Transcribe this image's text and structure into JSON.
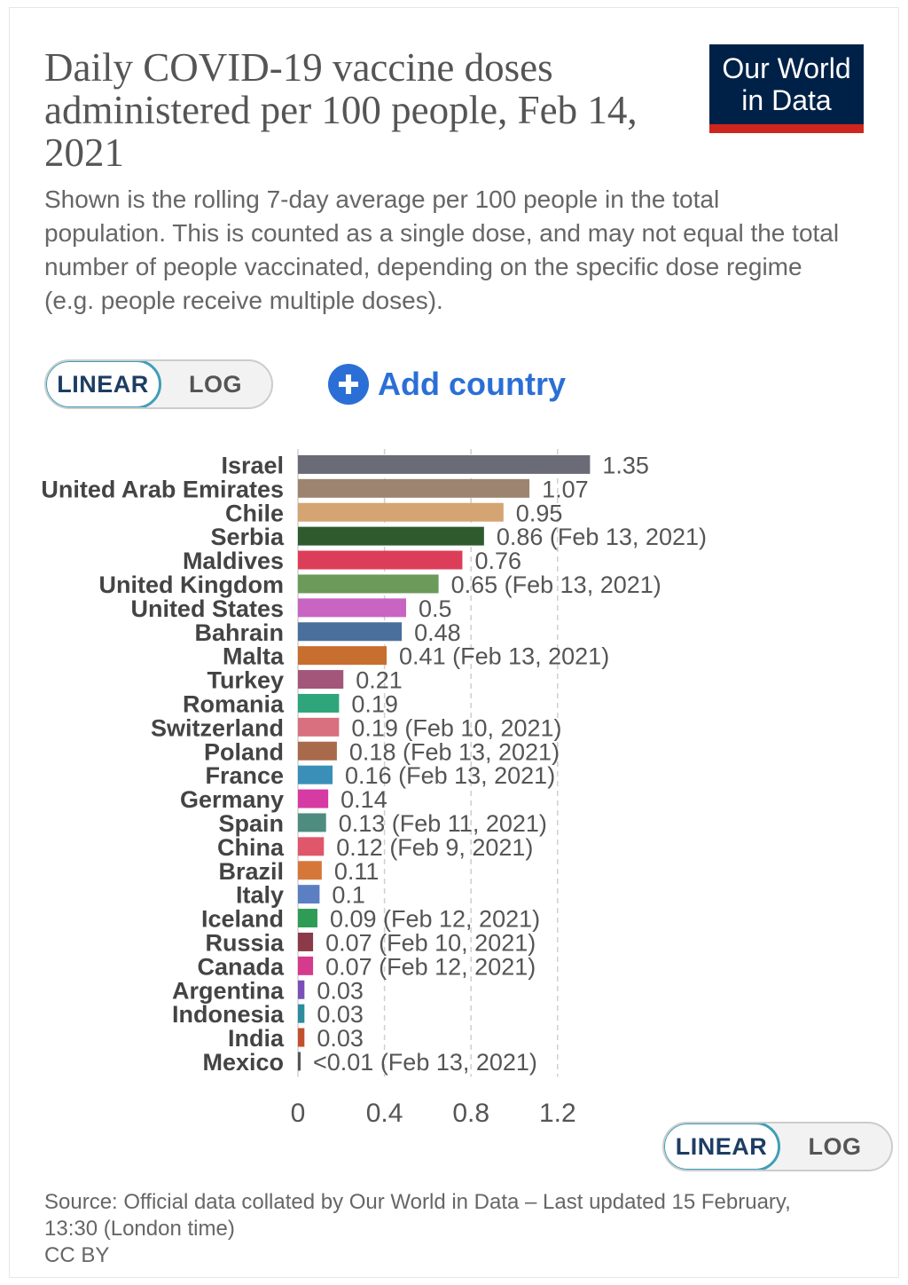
{
  "header": {
    "title": "Daily COVID-19 vaccine doses administered per 100 people, Feb 14, 2021",
    "subtitle": "Shown is the rolling 7-day average per 100 people in the total population. This is counted as a single dose, and may not equal the total number of people vaccinated, depending on the specific dose regime (e.g. people receive multiple doses).",
    "logo_line1": "Our World",
    "logo_line2": "in Data"
  },
  "controls": {
    "linear": "LINEAR",
    "log": "LOG",
    "add_country": "Add country",
    "add_icon": "plus-circle-icon"
  },
  "footer": {
    "source": "Source: Official data collated by Our World in Data – Last updated 15 February, 13:30 (London time)",
    "license": "CC BY"
  },
  "chart_data": {
    "type": "bar",
    "orientation": "horizontal",
    "scale": "linear",
    "xlim": [
      0,
      1.35
    ],
    "xticks": [
      0,
      0.4,
      0.8,
      1.2
    ],
    "xtick_labels": [
      "0",
      "0.4",
      "0.8",
      "1.2"
    ],
    "grid": "vertical dashed",
    "categories": [
      "Israel",
      "United Arab Emirates",
      "Chile",
      "Serbia",
      "Maldives",
      "United Kingdom",
      "United States",
      "Bahrain",
      "Malta",
      "Turkey",
      "Romania",
      "Switzerland",
      "Poland",
      "France",
      "Germany",
      "Spain",
      "China",
      "Brazil",
      "Italy",
      "Iceland",
      "Russia",
      "Canada",
      "Argentina",
      "Indonesia",
      "India",
      "Mexico"
    ],
    "values": [
      1.35,
      1.07,
      0.95,
      0.86,
      0.76,
      0.65,
      0.5,
      0.48,
      0.41,
      0.21,
      0.19,
      0.19,
      0.18,
      0.16,
      0.14,
      0.13,
      0.12,
      0.11,
      0.1,
      0.09,
      0.07,
      0.07,
      0.03,
      0.03,
      0.03,
      0.005
    ],
    "labels": [
      "1.35",
      "1.07",
      "0.95",
      "0.86 (Feb 13, 2021)",
      "0.76",
      "0.65 (Feb 13, 2021)",
      "0.5",
      "0.48",
      "0.41 (Feb 13, 2021)",
      "0.21",
      "0.19",
      "0.19 (Feb 10, 2021)",
      "0.18 (Feb 13, 2021)",
      "0.16 (Feb 13, 2021)",
      "0.14",
      "0.13 (Feb 11, 2021)",
      "0.12 (Feb 9, 2021)",
      "0.11",
      "0.1",
      "0.09 (Feb 12, 2021)",
      "0.07 (Feb 10, 2021)",
      "0.07 (Feb 12, 2021)",
      "0.03",
      "0.03",
      "0.03",
      "<0.01 (Feb 13, 2021)"
    ],
    "colors": [
      "#6b6b78",
      "#9c8470",
      "#d4a573",
      "#2e5a2e",
      "#dc3d58",
      "#6b9a5a",
      "#c865c2",
      "#4b6f9c",
      "#c76f2e",
      "#a3557a",
      "#2ea57a",
      "#d8707f",
      "#a86a4a",
      "#3a8fb8",
      "#d63aa3",
      "#4e8c7f",
      "#e0566a",
      "#d6773a",
      "#5b7fc2",
      "#2e9c55",
      "#8c3a4a",
      "#d63a8c",
      "#7a4fb8",
      "#2e8c9c",
      "#c2502e",
      "#555555"
    ]
  }
}
